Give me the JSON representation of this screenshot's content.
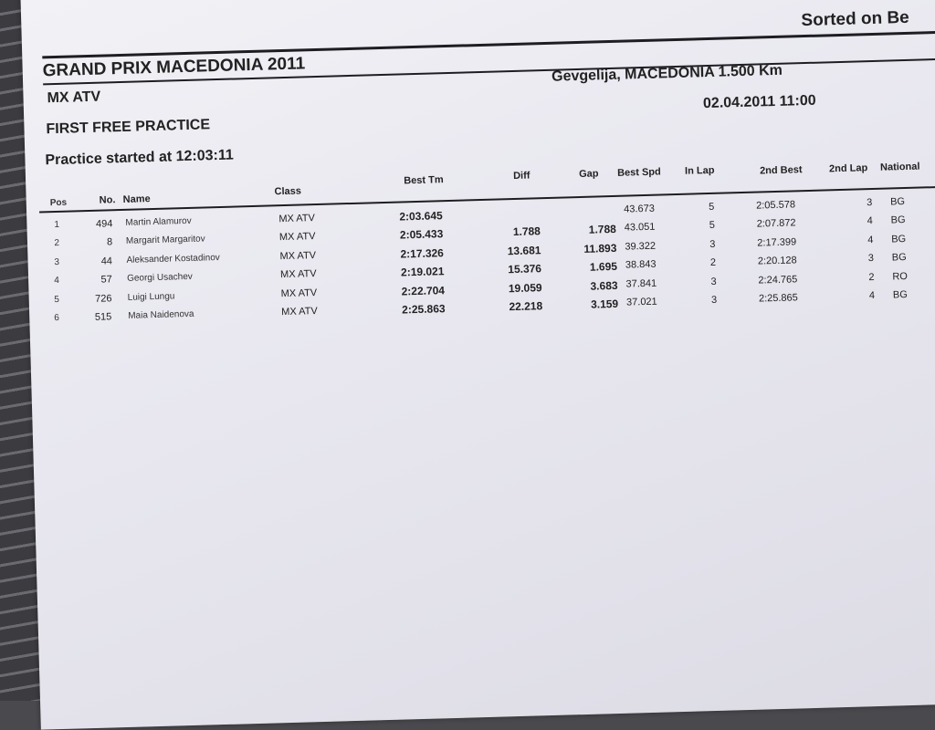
{
  "header": {
    "title": "GRAND PRIX MACEDONIA 2011",
    "sorted": "Sorted on Be",
    "class": "MX ATV",
    "venue": "Gevgelija, MACEDONIA 1.500 Km",
    "session": "FIRST FREE PRACTICE",
    "datetime": "02.04.2011 11:00",
    "started": "Practice started at 12:03:11"
  },
  "columns": [
    "Pos",
    "No.",
    "Name",
    "Class",
    "Best Tm",
    "Diff",
    "Gap",
    "Best Spd",
    "In Lap",
    "2nd Best",
    "2nd Lap",
    "National"
  ],
  "rows": [
    {
      "pos": "1",
      "no": "494",
      "name": "Martin Alamurov",
      "class": "MX ATV",
      "best": "2:03.645",
      "diff": "",
      "gap": "",
      "spd": "43.673",
      "inlap": "5",
      "second": "2:05.578",
      "lap2": "3",
      "nat": "BG"
    },
    {
      "pos": "2",
      "no": "8",
      "name": "Margarit Margaritov",
      "class": "MX ATV",
      "best": "2:05.433",
      "diff": "1.788",
      "gap": "1.788",
      "spd": "43.051",
      "inlap": "5",
      "second": "2:07.872",
      "lap2": "4",
      "nat": "BG"
    },
    {
      "pos": "3",
      "no": "44",
      "name": "Aleksander Kostadinov",
      "class": "MX ATV",
      "best": "2:17.326",
      "diff": "13.681",
      "gap": "11.893",
      "spd": "39.322",
      "inlap": "3",
      "second": "2:17.399",
      "lap2": "4",
      "nat": "BG"
    },
    {
      "pos": "4",
      "no": "57",
      "name": "Georgi Usachev",
      "class": "MX ATV",
      "best": "2:19.021",
      "diff": "15.376",
      "gap": "1.695",
      "spd": "38.843",
      "inlap": "2",
      "second": "2:20.128",
      "lap2": "3",
      "nat": "BG"
    },
    {
      "pos": "5",
      "no": "726",
      "name": "Luigi Lungu",
      "class": "MX ATV",
      "best": "2:22.704",
      "diff": "19.059",
      "gap": "3.683",
      "spd": "37.841",
      "inlap": "3",
      "second": "2:24.765",
      "lap2": "2",
      "nat": "RO"
    },
    {
      "pos": "6",
      "no": "515",
      "name": "Maia Naidenova",
      "class": "MX ATV",
      "best": "2:25.863",
      "diff": "22.218",
      "gap": "3.159",
      "spd": "37.021",
      "inlap": "3",
      "second": "2:25.865",
      "lap2": "4",
      "nat": "BG"
    }
  ]
}
